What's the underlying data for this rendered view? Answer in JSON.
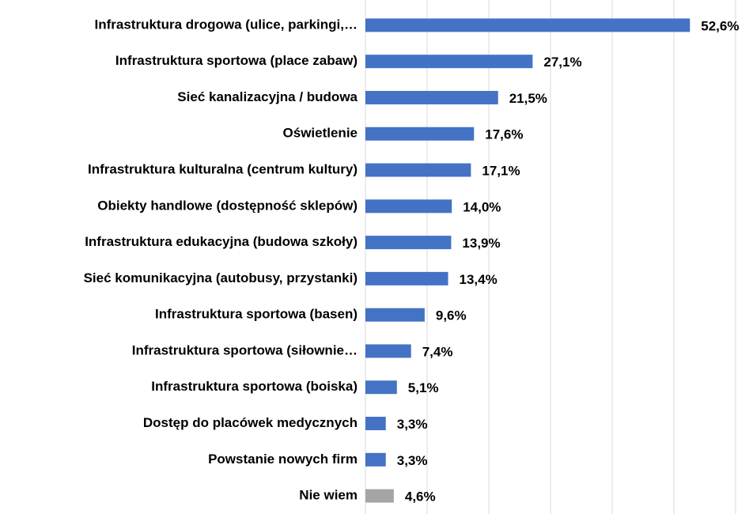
{
  "chart_data": {
    "type": "bar",
    "orientation": "horizontal",
    "categories": [
      "Infrastruktura drogowa (ulice, parkingi,…",
      "Infrastruktura sportowa (place zabaw)",
      "Sieć kanalizacyjna / budowa",
      "Oświetlenie",
      "Infrastruktura kulturalna (centrum kultury)",
      "Obiekty handlowe (dostępność sklepów)",
      "Infrastruktura edukacyjna (budowa szkoły)",
      "Sieć komunikacyjna (autobusy, przystanki)",
      "Infrastruktura sportowa (basen)",
      "Infrastruktura sportowa (siłownie…",
      "Infrastruktura sportowa (boiska)",
      "Dostęp do placówek medycznych",
      "Powstanie nowych firm",
      "Nie wiem"
    ],
    "values": [
      52.6,
      27.1,
      21.5,
      17.6,
      17.1,
      14.0,
      13.9,
      13.4,
      9.6,
      7.4,
      5.1,
      3.3,
      3.3,
      4.6
    ],
    "value_labels": [
      "52,6%",
      "27,1%",
      "21,5%",
      "17,6%",
      "17,1%",
      "14,0%",
      "13,9%",
      "13,4%",
      "9,6%",
      "7,4%",
      "5,1%",
      "3,3%",
      "3,3%",
      "4,6%"
    ],
    "colors": [
      "#4472c4",
      "#4472c4",
      "#4472c4",
      "#4472c4",
      "#4472c4",
      "#4472c4",
      "#4472c4",
      "#4472c4",
      "#4472c4",
      "#4472c4",
      "#4472c4",
      "#4472c4",
      "#4472c4",
      "#a5a5a5"
    ],
    "xlim": [
      0,
      60
    ],
    "xticks": [
      0,
      10,
      20,
      30,
      40,
      50,
      60
    ],
    "grid": true
  }
}
